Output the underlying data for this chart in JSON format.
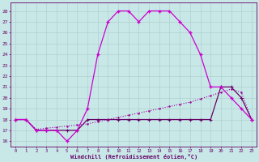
{
  "xlabel": "Windchill (Refroidissement éolien,°C)",
  "hours": [
    0,
    1,
    2,
    3,
    4,
    5,
    6,
    7,
    8,
    9,
    10,
    11,
    12,
    13,
    14,
    15,
    16,
    17,
    18,
    19,
    20,
    21,
    22,
    23
  ],
  "temp": [
    18,
    18,
    17,
    17,
    17,
    16,
    17,
    19,
    24,
    27,
    28,
    28,
    27,
    28,
    28,
    28,
    27,
    26,
    24,
    21,
    21,
    20,
    19,
    18
  ],
  "windchill": [
    18,
    18,
    17,
    17,
    17,
    17,
    17,
    18,
    18,
    18,
    18,
    18,
    18,
    18,
    18,
    18,
    18,
    18,
    18,
    18,
    21,
    21,
    20,
    18
  ],
  "trend": [
    18,
    18,
    17.1,
    17.2,
    17.3,
    17.4,
    17.5,
    17.6,
    17.8,
    18.0,
    18.2,
    18.4,
    18.6,
    18.8,
    19.0,
    19.2,
    19.4,
    19.6,
    19.9,
    20.2,
    20.5,
    20.8,
    20.5,
    18
  ],
  "color_main": "#cc00cc",
  "color_dotted": "#990099",
  "color_wc": "#660066",
  "bg_color": "#c8e8e8",
  "grid_color": "#aacccc",
  "text_color": "#660066",
  "ylim": [
    15.5,
    28.8
  ],
  "xlim": [
    -0.5,
    23.5
  ],
  "yticks": [
    16,
    17,
    18,
    19,
    20,
    21,
    22,
    23,
    24,
    25,
    26,
    27,
    28
  ],
  "xticks": [
    0,
    1,
    2,
    3,
    4,
    5,
    6,
    7,
    8,
    9,
    10,
    11,
    12,
    13,
    14,
    15,
    16,
    17,
    18,
    19,
    20,
    21,
    22,
    23
  ]
}
